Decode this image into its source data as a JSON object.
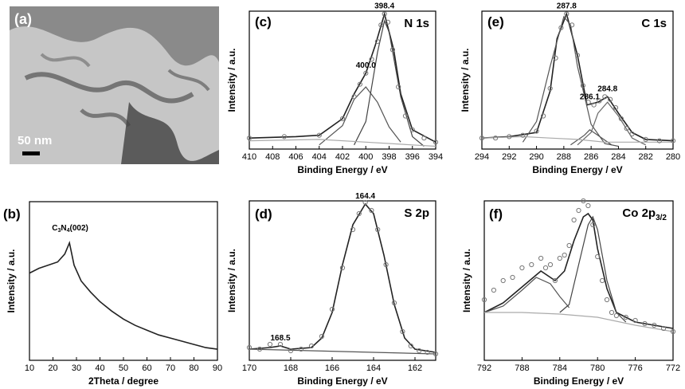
{
  "panel_a": {
    "label": "(a)",
    "scale_bar": "50 nm"
  },
  "chart_data": [
    {
      "panel": "(b)",
      "type": "line",
      "xlabel": "2Theta / degree",
      "ylabel": "Intensity / a.u.",
      "xlim": [
        10,
        90
      ],
      "ylim": [
        0,
        1
      ],
      "xticks": [
        10,
        20,
        30,
        40,
        50,
        60,
        70,
        80,
        90
      ],
      "annotations": [
        {
          "text": "C3N4(002)",
          "x": 27.3,
          "y": 0.79
        }
      ],
      "series": [
        {
          "x": [
            10,
            14,
            18,
            22,
            25,
            27,
            29,
            32,
            36,
            40,
            45,
            50,
            55,
            60,
            65,
            70,
            75,
            80,
            85,
            90
          ],
          "y": [
            0.55,
            0.58,
            0.6,
            0.62,
            0.67,
            0.74,
            0.6,
            0.5,
            0.43,
            0.37,
            0.31,
            0.26,
            0.22,
            0.19,
            0.16,
            0.14,
            0.12,
            0.1,
            0.08,
            0.07
          ]
        }
      ]
    },
    {
      "panel": "(c)",
      "type": "line",
      "title": "N 1s",
      "xlabel": "Binding Energy / eV",
      "ylabel": "Intensity / a.u.",
      "xlim": [
        410,
        394
      ],
      "ylim": [
        0,
        1
      ],
      "xticks": [
        410,
        408,
        406,
        404,
        402,
        400,
        398,
        396,
        394
      ],
      "peaks": [
        {
          "center": 398.4,
          "label": "398.4"
        },
        {
          "center": 400.0,
          "label": "400.0"
        }
      ],
      "series": [
        {
          "x": [
            410,
            406,
            404,
            402,
            401,
            400,
            399.2,
            398.4,
            397.6,
            397,
            396,
            394
          ],
          "y": [
            0.08,
            0.09,
            0.1,
            0.22,
            0.4,
            0.55,
            0.75,
            0.98,
            0.72,
            0.4,
            0.14,
            0.05
          ]
        },
        {
          "x": [
            404,
            402,
            401,
            400,
            399,
            398,
            397
          ],
          "y": [
            0.03,
            0.17,
            0.36,
            0.45,
            0.34,
            0.16,
            0.05
          ]
        },
        {
          "x": [
            401,
            400,
            399,
            398.4,
            398,
            397,
            396,
            395
          ],
          "y": [
            0.03,
            0.2,
            0.7,
            0.93,
            0.85,
            0.38,
            0.09,
            0.02
          ]
        },
        {
          "x": [
            410,
            404,
            400,
            396,
            394
          ],
          "y": [
            0.06,
            0.07,
            0.05,
            0.03,
            0.02
          ]
        }
      ],
      "markers": [
        {
          "x": [
            410,
            407,
            404,
            402,
            401,
            400.5,
            400,
            399.5,
            399,
            398.7,
            398.4,
            398.1,
            397.7,
            397.2,
            396.6,
            396,
            395,
            394
          ],
          "y": [
            0.08,
            0.09,
            0.1,
            0.22,
            0.38,
            0.47,
            0.55,
            0.65,
            0.78,
            0.9,
            0.98,
            0.92,
            0.72,
            0.45,
            0.24,
            0.14,
            0.08,
            0.05
          ]
        }
      ]
    },
    {
      "panel": "(e)",
      "type": "line",
      "title": "C 1s",
      "xlabel": "Binding Energy / eV",
      "ylabel": "Intensity / a.u.",
      "xlim": [
        294,
        280
      ],
      "ylim": [
        0,
        1
      ],
      "xticks": [
        294,
        292,
        290,
        288,
        286,
        284,
        282,
        280
      ],
      "peaks": [
        {
          "center": 287.8,
          "label": "287.8"
        },
        {
          "center": 286.1,
          "label": "286.1"
        },
        {
          "center": 284.8,
          "label": "284.8"
        }
      ],
      "series": [
        {
          "x": [
            294,
            292,
            290,
            289,
            288.5,
            287.8,
            287,
            286.3,
            285.5,
            284.8,
            284,
            283,
            282,
            280
          ],
          "y": [
            0.08,
            0.09,
            0.12,
            0.42,
            0.8,
            0.98,
            0.68,
            0.32,
            0.34,
            0.38,
            0.26,
            0.12,
            0.07,
            0.06
          ]
        },
        {
          "x": [
            291,
            290,
            289,
            288,
            287.5,
            287,
            286,
            285,
            284
          ],
          "y": [
            0.05,
            0.2,
            0.6,
            0.96,
            0.9,
            0.6,
            0.18,
            0.04,
            0.02
          ]
        },
        {
          "x": [
            287.5,
            286.5,
            286.1,
            285.5,
            284.5
          ],
          "y": [
            0.03,
            0.1,
            0.14,
            0.1,
            0.03
          ]
        },
        {
          "x": [
            287,
            286,
            285.5,
            284.8,
            284,
            283,
            282
          ],
          "y": [
            0.03,
            0.12,
            0.26,
            0.34,
            0.24,
            0.08,
            0.03
          ]
        },
        {
          "x": [
            294,
            291,
            289,
            287,
            285,
            282,
            280
          ],
          "y": [
            0.08,
            0.09,
            0.08,
            0.07,
            0.05,
            0.05,
            0.05
          ]
        }
      ],
      "markers": [
        {
          "x": [
            294,
            293,
            292,
            291,
            290,
            289.5,
            289,
            288.6,
            288.2,
            287.8,
            287.4,
            287,
            286.6,
            286.2,
            285.8,
            285.4,
            285,
            284.6,
            284.2,
            283.8,
            283.4,
            283,
            282,
            281,
            280
          ],
          "y": [
            0.08,
            0.08,
            0.09,
            0.1,
            0.13,
            0.24,
            0.44,
            0.66,
            0.88,
            0.98,
            0.9,
            0.68,
            0.46,
            0.34,
            0.32,
            0.35,
            0.38,
            0.36,
            0.3,
            0.22,
            0.15,
            0.11,
            0.07,
            0.06,
            0.06
          ]
        }
      ]
    },
    {
      "panel": "(d)",
      "type": "line",
      "title": "S 2p",
      "xlabel": "Binding Energy / eV",
      "ylabel": "Intensity / a.u.",
      "xlim": [
        170,
        161
      ],
      "ylim": [
        0,
        1
      ],
      "xticks": [
        170,
        168,
        166,
        164,
        162
      ],
      "peaks": [
        {
          "center": 168.5,
          "label": "168.5"
        },
        {
          "center": 164.4,
          "label": "164.4"
        }
      ],
      "series": [
        {
          "x": [
            170,
            169,
            168.5,
            168,
            167,
            166.5,
            166,
            165.5,
            165,
            164.4,
            164,
            163.5,
            163,
            162.5,
            162,
            161
          ],
          "y": [
            0.07,
            0.08,
            0.09,
            0.07,
            0.08,
            0.14,
            0.3,
            0.6,
            0.85,
            0.98,
            0.92,
            0.66,
            0.35,
            0.14,
            0.07,
            0.05
          ]
        },
        {
          "x": [
            170,
            167,
            164,
            161
          ],
          "y": [
            0.07,
            0.06,
            0.05,
            0.04
          ]
        }
      ],
      "markers": [
        {
          "x": [
            170,
            169.5,
            169,
            168.5,
            168,
            167.5,
            167,
            166.5,
            166,
            165.5,
            165,
            164.7,
            164.4,
            164.1,
            163.8,
            163.4,
            163,
            162.6,
            162.2,
            161.8,
            161.4,
            161
          ],
          "y": [
            0.08,
            0.07,
            0.1,
            0.1,
            0.06,
            0.07,
            0.09,
            0.15,
            0.32,
            0.58,
            0.82,
            0.92,
            0.99,
            0.94,
            0.82,
            0.6,
            0.36,
            0.18,
            0.09,
            0.06,
            0.05,
            0.04
          ]
        }
      ]
    },
    {
      "panel": "(f)",
      "type": "line",
      "title": "Co 2p3/2",
      "xlabel": "Binding Energy / eV",
      "ylabel": "Intensity / a.u.",
      "xlim": [
        792,
        772
      ],
      "ylim": [
        0,
        1
      ],
      "xticks": [
        792,
        788,
        784,
        780,
        776,
        772
      ],
      "series": [
        {
          "x": [
            792,
            790,
            788,
            786,
            784.5,
            783.5,
            782.5,
            781.5,
            781,
            780.5,
            780,
            779,
            778,
            776,
            774,
            772
          ],
          "y": [
            0.3,
            0.36,
            0.46,
            0.56,
            0.5,
            0.56,
            0.75,
            0.9,
            0.92,
            0.88,
            0.7,
            0.45,
            0.3,
            0.24,
            0.22,
            0.2
          ]
        },
        {
          "x": [
            792,
            790,
            788,
            786.5,
            785,
            784,
            783
          ],
          "y": [
            0.3,
            0.34,
            0.44,
            0.52,
            0.48,
            0.4,
            0.33
          ]
        },
        {
          "x": [
            784,
            783,
            782,
            781,
            780.5,
            780,
            779,
            778,
            777
          ],
          "y": [
            0.3,
            0.35,
            0.6,
            0.85,
            0.9,
            0.82,
            0.5,
            0.3,
            0.24
          ]
        },
        {
          "x": [
            792,
            788,
            784,
            780,
            776,
            772
          ],
          "y": [
            0.3,
            0.3,
            0.29,
            0.27,
            0.22,
            0.18
          ]
        }
      ],
      "markers": [
        {
          "x": [
            792,
            791,
            790,
            789,
            788,
            787,
            786,
            785.5,
            785,
            784.5,
            784,
            783.5,
            783,
            782.5,
            782,
            781.5,
            781,
            780.5,
            780,
            779.5,
            779,
            778.5,
            778,
            777,
            776,
            775,
            774,
            773,
            772
          ],
          "y": [
            0.38,
            0.44,
            0.5,
            0.52,
            0.58,
            0.6,
            0.64,
            0.58,
            0.6,
            0.5,
            0.64,
            0.66,
            0.72,
            0.88,
            0.94,
            1.0,
            0.97,
            0.85,
            0.65,
            0.5,
            0.38,
            0.3,
            0.28,
            0.27,
            0.25,
            0.23,
            0.22,
            0.2,
            0.18
          ]
        }
      ]
    }
  ]
}
